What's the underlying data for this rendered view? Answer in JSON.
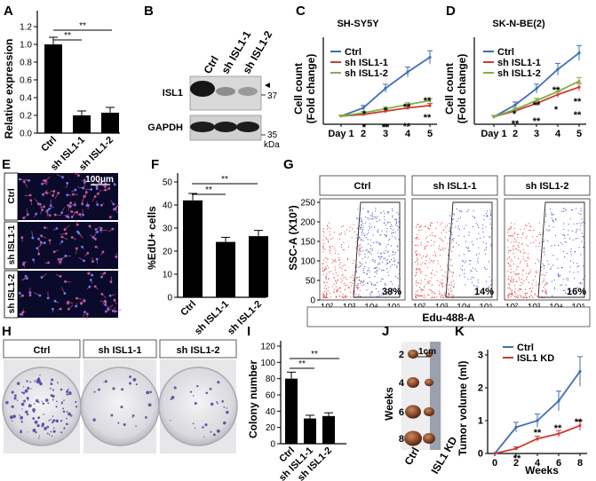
{
  "panels": {
    "A": {
      "label": "A",
      "chart_data": {
        "type": "bar",
        "categories": [
          "Ctrl",
          "sh ISL1-1",
          "sh ISL1-2"
        ],
        "values": [
          1.0,
          0.2,
          0.23
        ],
        "errors": [
          0.08,
          0.05,
          0.06
        ],
        "ylabel": "Relative expression",
        "ylim": [
          0,
          1.2
        ],
        "yticks": [
          "0.0",
          "0.2",
          "0.4",
          "0.6",
          "0.8",
          "1.0",
          "1.2"
        ],
        "significance": [
          "**",
          "**"
        ]
      }
    },
    "B": {
      "label": "B",
      "lanes": [
        "Ctrl",
        "sh ISL1-1",
        "sh ISL1-2"
      ],
      "bands": [
        "ISL1",
        "GAPDH"
      ],
      "markers": [
        "37",
        "35"
      ],
      "unit": "kDa",
      "arrow": "◄"
    },
    "C": {
      "label": "C",
      "chart_data": {
        "type": "line",
        "title": "SH-SY5Y",
        "ylabel_line1": "Cell count",
        "ylabel_line2": "(Fold change)",
        "x": [
          1,
          2,
          3,
          4,
          5
        ],
        "xticks": [
          "Day 1",
          "2",
          "3",
          "4",
          "5"
        ],
        "ylim": [
          0.5,
          5.5
        ],
        "series": [
          {
            "name": "Ctrl",
            "color": "#3f6eb5",
            "values": [
              1.0,
              1.5,
              2.7,
              3.7,
              4.6
            ],
            "errors": [
              0.05,
              0.15,
              0.25,
              0.3,
              0.4
            ]
          },
          {
            "name": "sh ISL1-1",
            "color": "#cc3a32",
            "values": [
              1.0,
              1.1,
              1.3,
              1.5,
              1.65
            ],
            "errors": [
              0.05,
              0.08,
              0.1,
              0.1,
              0.12
            ]
          },
          {
            "name": "sh ISL1-2",
            "color": "#7db343",
            "values": [
              1.0,
              1.2,
              1.45,
              1.7,
              1.95
            ],
            "errors": [
              0.05,
              0.08,
              0.1,
              0.12,
              0.14
            ]
          }
        ],
        "annotations": [
          "*",
          "*",
          "*",
          "**",
          "**",
          "**",
          "**",
          "**"
        ]
      }
    },
    "D": {
      "label": "D",
      "chart_data": {
        "type": "line",
        "title": "SK-N-BE(2)",
        "ylabel_line1": "Cell count",
        "ylabel_line2": "(Fold change)",
        "x": [
          1,
          2,
          3,
          4,
          5
        ],
        "xticks": [
          "Day 1",
          "2",
          "3",
          "4",
          "5"
        ],
        "ylim": [
          0.5,
          6.0
        ],
        "series": [
          {
            "name": "Ctrl",
            "color": "#3f6eb5",
            "values": [
              1.0,
              1.8,
              2.9,
              4.2,
              5.3
            ],
            "errors": [
              0.1,
              0.2,
              0.3,
              0.4,
              0.5
            ]
          },
          {
            "name": "sh ISL1-1",
            "color": "#cc3a32",
            "values": [
              1.0,
              1.4,
              1.9,
              2.5,
              3.0
            ],
            "errors": [
              0.1,
              0.1,
              0.15,
              0.2,
              0.25
            ]
          },
          {
            "name": "sh ISL1-2",
            "color": "#7db343",
            "values": [
              1.0,
              1.5,
              2.1,
              2.7,
              3.4
            ],
            "errors": [
              0.1,
              0.12,
              0.15,
              0.2,
              0.25
            ]
          }
        ],
        "annotations": [
          "*",
          "**",
          "**",
          "**",
          "**",
          "*",
          "**",
          "**"
        ]
      }
    },
    "E": {
      "label": "E",
      "scale": "100μm",
      "rows": [
        "Ctrl",
        "sh ISL1-1",
        "sh ISL1-2"
      ]
    },
    "F": {
      "label": "F",
      "chart_data": {
        "type": "bar",
        "categories": [
          "Ctrl",
          "sh ISL1-1",
          "sh ISL1-2"
        ],
        "values": [
          42,
          24,
          26.5
        ],
        "errors": [
          3,
          2,
          2.5
        ],
        "ylabel": "%EdU+ cells",
        "ylim": [
          0,
          50
        ],
        "yticks": [
          "0",
          "10",
          "20",
          "30",
          "40",
          "50"
        ],
        "significance": [
          "**",
          "**"
        ]
      }
    },
    "G": {
      "label": "G",
      "groups": [
        "Ctrl",
        "sh ISL1-1",
        "sh ISL1-2"
      ],
      "percents": [
        "38%",
        "14%",
        "16%"
      ],
      "ylabel": "SSC-A (X10³)",
      "yticks": [
        "0",
        "50",
        "100",
        "150",
        "200",
        "250"
      ],
      "xticks": [
        "10²",
        "10³",
        "10⁴",
        "10⁵"
      ],
      "xlabel": "Edu-488-A"
    },
    "H": {
      "label": "H",
      "groups": [
        "Ctrl",
        "sh ISL1-1",
        "sh ISL1-2"
      ]
    },
    "I": {
      "label": "I",
      "chart_data": {
        "type": "bar",
        "categories": [
          "Ctrl",
          "sh ISL1-1",
          "sh ISL1-2"
        ],
        "values": [
          80,
          31,
          34
        ],
        "errors": [
          8,
          4,
          4
        ],
        "ylabel": "Colony number",
        "ylim": [
          0,
          120
        ],
        "yticks": [
          "0",
          "20",
          "40",
          "60",
          "80",
          "100",
          "120"
        ],
        "significance": [
          "**",
          "**"
        ]
      }
    },
    "J": {
      "label": "J",
      "ylabel": "Weeks",
      "weeks": [
        "2",
        "4",
        "6",
        "8"
      ],
      "groups": [
        "Ctrl",
        "ISL1 KD"
      ],
      "scale": "1cm"
    },
    "K": {
      "label": "K",
      "chart_data": {
        "type": "line",
        "xlabel": "Weeks",
        "ylabel": "Tumor volume (ml)",
        "x": [
          0,
          2,
          4,
          6,
          8
        ],
        "xticks": [
          "0",
          "2",
          "4",
          "6",
          "8"
        ],
        "yticks": [
          "0",
          "1",
          "2",
          "3"
        ],
        "ylim": [
          0,
          3
        ],
        "series": [
          {
            "name": "Ctrl",
            "color": "#3f6eb5",
            "values": [
              0,
              0.8,
              1.0,
              1.6,
              2.5
            ],
            "errors": [
              0,
              0.15,
              0.2,
              0.3,
              0.45
            ]
          },
          {
            "name": "ISL1 KD",
            "color": "#cc3a32",
            "values": [
              0,
              0.15,
              0.45,
              0.6,
              0.85
            ],
            "errors": [
              0,
              0.05,
              0.08,
              0.1,
              0.15
            ]
          }
        ],
        "annotations": [
          "**",
          "**",
          "**",
          "**"
        ]
      }
    }
  }
}
